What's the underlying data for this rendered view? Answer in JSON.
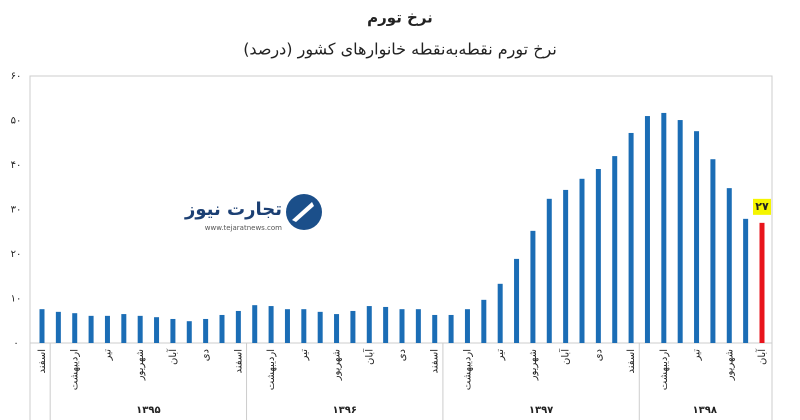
{
  "chart_data": {
    "type": "bar",
    "title": "نرخ تورم",
    "subtitle": "نرخ تورم نقطه‌به‌نقطه خانوارهای کشور (درصد)",
    "categories": [
      "اسفند",
      null,
      "اردیبهشت",
      null,
      "تیر",
      null,
      "شهریور",
      null,
      "آبان",
      null,
      "دی",
      null,
      "اسفند",
      null,
      "اردیبهشت",
      null,
      "تیر",
      null,
      "شهریور",
      null,
      "آبان",
      null,
      "دی",
      null,
      "اسفند",
      null,
      "اردیبهشت",
      null,
      "تیر",
      null,
      "شهریور",
      null,
      "آبان",
      null,
      "دی",
      null,
      "اسفند",
      null,
      "اردیبهشت",
      null,
      "تیر",
      null,
      "شهریور",
      null,
      "آبان"
    ],
    "values": [
      7.6,
      7.0,
      6.7,
      6.1,
      6.1,
      6.5,
      6.1,
      5.8,
      5.4,
      4.9,
      5.4,
      6.3,
      7.2,
      8.5,
      8.3,
      7.6,
      7.6,
      7.0,
      6.5,
      7.2,
      8.3,
      8.1,
      7.6,
      7.6,
      6.3,
      6.3,
      7.6,
      9.7,
      13.3,
      18.9,
      25.2,
      32.4,
      34.4,
      36.9,
      39.1,
      42.0,
      47.2,
      51.0,
      51.7,
      50.1,
      47.6,
      41.3,
      34.8,
      27.9,
      27
    ],
    "value_labels": [
      null,
      null,
      null,
      null,
      null,
      null,
      null,
      null,
      null,
      null,
      null,
      null,
      null,
      null,
      null,
      null,
      null,
      null,
      null,
      null,
      null,
      null,
      null,
      null,
      null,
      null,
      null,
      null,
      null,
      null,
      null,
      null,
      null,
      null,
      null,
      null,
      null,
      null,
      null,
      null,
      null,
      null,
      null,
      null,
      "۲۷"
    ],
    "color": "#1b6db5",
    "highlight_color": "#e8141c",
    "label_background": "#f5f500",
    "year_groups": [
      "۱۳۹۵",
      "۱۳۹۶",
      "۱۳۹۷",
      "۱۳۹۸"
    ],
    "ylim": [
      0,
      60
    ],
    "yticks": [
      {
        "value": 0,
        "label": "۰"
      },
      {
        "value": 10,
        "label": "۱۰"
      },
      {
        "value": 20,
        "label": "۲۰"
      },
      {
        "value": 30,
        "label": "۳۰"
      },
      {
        "value": 40,
        "label": "۴۰"
      },
      {
        "value": 50,
        "label": "۵۰"
      },
      {
        "value": 60,
        "label": "۶۰"
      }
    ],
    "grid": false,
    "watermark": {
      "name": "تجارت نیوز",
      "url": "www.tejaratnews.com"
    }
  }
}
